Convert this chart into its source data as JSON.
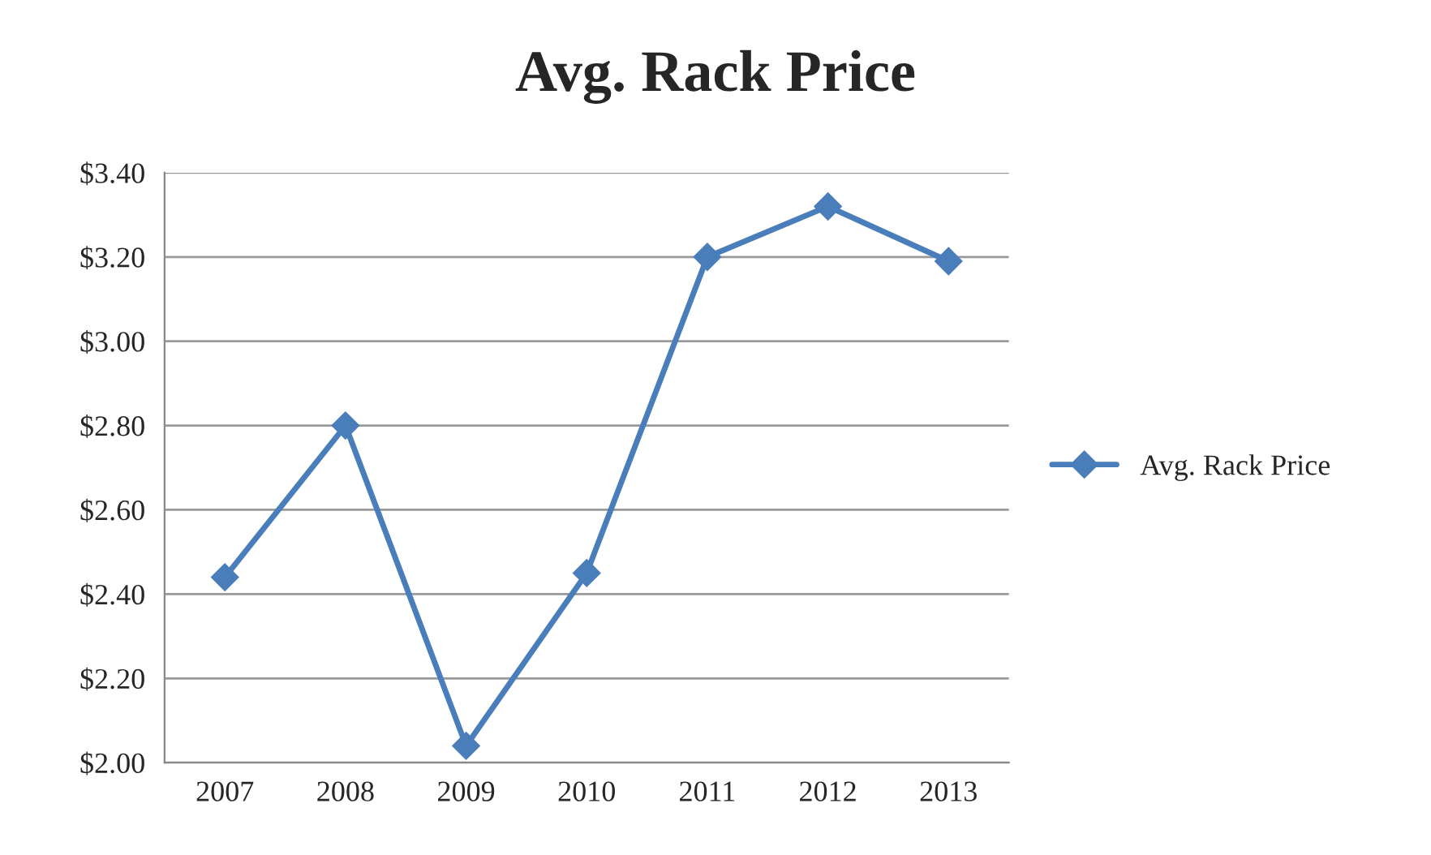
{
  "chart_data": {
    "type": "line",
    "title": "Avg. Rack Price",
    "categories": [
      "2007",
      "2008",
      "2009",
      "2010",
      "2011",
      "2012",
      "2013"
    ],
    "series": [
      {
        "name": "Avg. Rack Price",
        "color": "#4a7ebb",
        "values": [
          2.44,
          2.8,
          2.04,
          2.45,
          3.2,
          3.32,
          3.19
        ]
      }
    ],
    "ylim": [
      2.0,
      3.4
    ],
    "yticks": [
      {
        "value": 2.0,
        "label": "$2.00"
      },
      {
        "value": 2.2,
        "label": "$2.20"
      },
      {
        "value": 2.4,
        "label": "$2.40"
      },
      {
        "value": 2.6,
        "label": "$2.60"
      },
      {
        "value": 2.8,
        "label": "$2.80"
      },
      {
        "value": 3.0,
        "label": "$3.00"
      },
      {
        "value": 3.2,
        "label": "$3.20"
      },
      {
        "value": 3.4,
        "label": "$3.40"
      }
    ],
    "grid": "y",
    "legend": "right",
    "marker": "diamond",
    "line_style": "solid"
  }
}
